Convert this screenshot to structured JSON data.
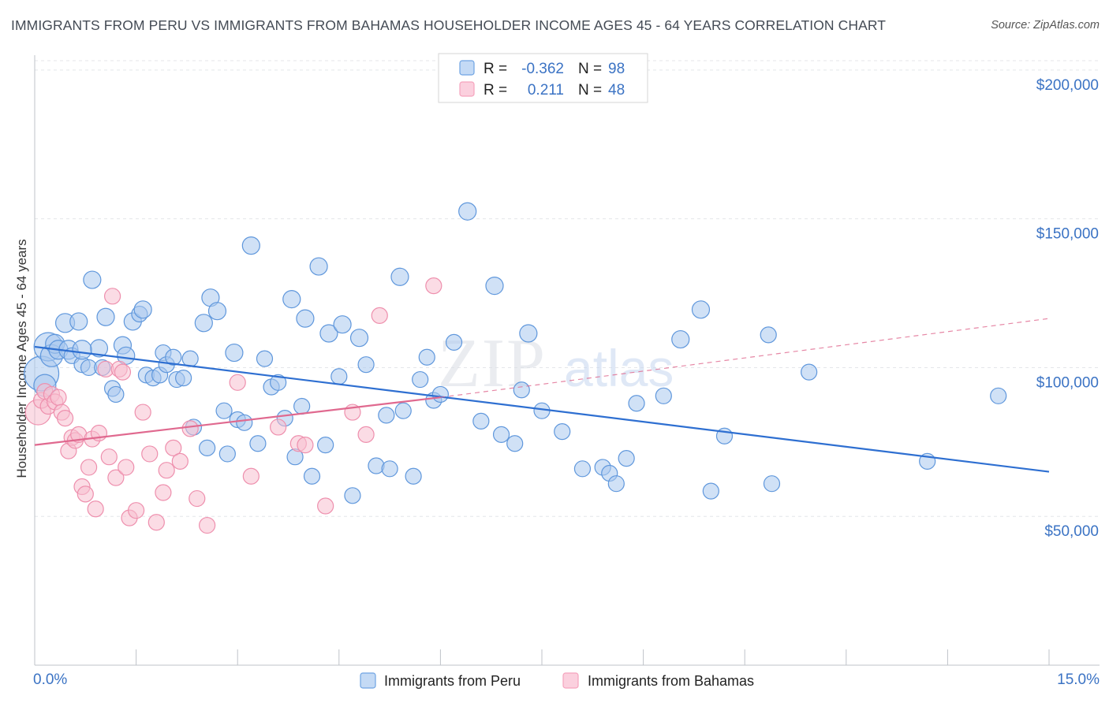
{
  "title": "IMMIGRANTS FROM PERU VS IMMIGRANTS FROM BAHAMAS HOUSEHOLDER INCOME AGES 45 - 64 YEARS CORRELATION CHART",
  "source": "Source: ZipAtlas.com",
  "watermark": {
    "zip": "ZIP",
    "atlas": "atlas"
  },
  "colors": {
    "peru": "#6fa4e3",
    "peru_line": "#2e6fd1",
    "bahamas": "#f5a3bd",
    "bahamas_line": "#e0698f",
    "tick": "#3b73c4"
  },
  "legend": {
    "r_label": "R =",
    "n_label": "N =",
    "rows": [
      {
        "series": "peru",
        "r": "-0.362",
        "n": "98"
      },
      {
        "series": "bahamas",
        "r": "0.211",
        "n": "48"
      }
    ]
  },
  "chart_data": {
    "type": "scatter",
    "xlabel": "",
    "ylabel": "Householder Income Ages 45 - 64 years",
    "xlim": [
      0,
      15
    ],
    "ylim": [
      0,
      205000
    ],
    "x_tick_labels": {
      "left": "0.0%",
      "right": "15.0%"
    },
    "y_ticks": [
      {
        "value": 50000,
        "label": "$50,000"
      },
      {
        "value": 100000,
        "label": "$100,000"
      },
      {
        "value": 150000,
        "label": "$150,000"
      },
      {
        "value": 200000,
        "label": "$200,000"
      }
    ],
    "grid": true,
    "legend_position": "top-center",
    "series": [
      {
        "name": "Immigrants from Peru",
        "trend": {
          "x": [
            0,
            15
          ],
          "y": [
            107000,
            65000
          ],
          "dashed_to": null
        },
        "points": [
          [
            0.1,
            98000,
            22
          ],
          [
            0.15,
            94000,
            14
          ],
          [
            0.2,
            107000,
            18
          ],
          [
            0.25,
            104000,
            14
          ],
          [
            0.3,
            108000,
            12
          ],
          [
            0.35,
            106000,
            12
          ],
          [
            0.45,
            115000,
            12
          ],
          [
            0.5,
            106000,
            12
          ],
          [
            0.55,
            104000,
            10
          ],
          [
            0.65,
            115500,
            11
          ],
          [
            0.7,
            101000,
            10
          ],
          [
            0.8,
            100000,
            10
          ],
          [
            0.85,
            129500,
            11
          ],
          [
            0.95,
            106500,
            11
          ],
          [
            1.05,
            117000,
            11
          ],
          [
            1.15,
            93000,
            10
          ],
          [
            1.2,
            91000,
            10
          ],
          [
            1.3,
            107500,
            11
          ],
          [
            1.35,
            104000,
            11
          ],
          [
            1.45,
            115500,
            11
          ],
          [
            1.55,
            118000,
            10
          ],
          [
            1.6,
            119500,
            11
          ],
          [
            1.65,
            97500,
            10
          ],
          [
            1.75,
            96500,
            10
          ],
          [
            1.85,
            97500,
            10
          ],
          [
            1.9,
            105000,
            10
          ],
          [
            1.95,
            101000,
            10
          ],
          [
            2.05,
            103500,
            10
          ],
          [
            2.1,
            96000,
            10
          ],
          [
            2.2,
            96500,
            10
          ],
          [
            2.3,
            103000,
            10
          ],
          [
            2.35,
            80000,
            10
          ],
          [
            2.5,
            115000,
            11
          ],
          [
            2.55,
            73000,
            10
          ],
          [
            2.6,
            123500,
            11
          ],
          [
            2.7,
            119000,
            11
          ],
          [
            2.8,
            85500,
            10
          ],
          [
            2.85,
            71000,
            10
          ],
          [
            2.95,
            105000,
            11
          ],
          [
            3.0,
            82500,
            10
          ],
          [
            3.1,
            81500,
            10
          ],
          [
            3.2,
            141000,
            11
          ],
          [
            3.3,
            74500,
            10
          ],
          [
            3.4,
            103000,
            10
          ],
          [
            3.5,
            93500,
            10
          ],
          [
            3.6,
            95000,
            10
          ],
          [
            3.7,
            83000,
            10
          ],
          [
            3.8,
            123000,
            11
          ],
          [
            3.85,
            70000,
            10
          ],
          [
            3.95,
            87000,
            10
          ],
          [
            4.0,
            116500,
            11
          ],
          [
            4.1,
            63500,
            10
          ],
          [
            4.2,
            134000,
            11
          ],
          [
            4.3,
            74000,
            10
          ],
          [
            4.35,
            111500,
            11
          ],
          [
            4.5,
            97000,
            10
          ],
          [
            4.55,
            114500,
            11
          ],
          [
            4.7,
            57000,
            10
          ],
          [
            4.8,
            110000,
            11
          ],
          [
            4.9,
            101000,
            10
          ],
          [
            5.05,
            67000,
            10
          ],
          [
            5.2,
            84000,
            10
          ],
          [
            5.25,
            66000,
            10
          ],
          [
            5.4,
            130500,
            11
          ],
          [
            5.45,
            85500,
            10
          ],
          [
            5.6,
            63500,
            10
          ],
          [
            5.7,
            96000,
            10
          ],
          [
            5.8,
            103500,
            10
          ],
          [
            5.9,
            89000,
            10
          ],
          [
            6.0,
            91000,
            10
          ],
          [
            6.2,
            108500,
            10
          ],
          [
            6.4,
            152500,
            11
          ],
          [
            6.6,
            82000,
            10
          ],
          [
            6.8,
            127500,
            11
          ],
          [
            6.9,
            77500,
            10
          ],
          [
            7.1,
            74500,
            10
          ],
          [
            7.2,
            92500,
            10
          ],
          [
            7.3,
            111500,
            11
          ],
          [
            7.5,
            85500,
            10
          ],
          [
            7.8,
            78500,
            10
          ],
          [
            8.1,
            66000,
            10
          ],
          [
            8.4,
            66500,
            10
          ],
          [
            8.5,
            64500,
            10
          ],
          [
            8.6,
            61000,
            10
          ],
          [
            8.75,
            69500,
            10
          ],
          [
            8.9,
            88000,
            10
          ],
          [
            9.3,
            90500,
            10
          ],
          [
            9.55,
            109500,
            11
          ],
          [
            9.85,
            119500,
            11
          ],
          [
            10.0,
            58500,
            10
          ],
          [
            10.2,
            77000,
            10
          ],
          [
            10.85,
            111000,
            10
          ],
          [
            10.9,
            61000,
            10
          ],
          [
            11.45,
            98500,
            10
          ],
          [
            13.2,
            68500,
            10
          ],
          [
            14.25,
            90500,
            10
          ],
          [
            0.7,
            106000,
            12
          ],
          [
            1.0,
            100000,
            10
          ]
        ]
      },
      {
        "name": "Immigrants from Bahamas",
        "trend": {
          "x": [
            0,
            6
          ],
          "y": [
            74000,
            90000
          ],
          "dashed_to": [
            15,
            116500
          ]
        },
        "points": [
          [
            0.05,
            85000,
            16
          ],
          [
            0.1,
            89000,
            10
          ],
          [
            0.15,
            92000,
            10
          ],
          [
            0.2,
            87000,
            10
          ],
          [
            0.25,
            91000,
            10
          ],
          [
            0.3,
            88500,
            10
          ],
          [
            0.35,
            90000,
            10
          ],
          [
            0.4,
            85000,
            10
          ],
          [
            0.45,
            83000,
            10
          ],
          [
            0.5,
            72000,
            10
          ],
          [
            0.55,
            76500,
            10
          ],
          [
            0.6,
            75500,
            10
          ],
          [
            0.65,
            77500,
            10
          ],
          [
            0.7,
            60000,
            10
          ],
          [
            0.75,
            57500,
            10
          ],
          [
            0.8,
            66500,
            10
          ],
          [
            0.85,
            76000,
            10
          ],
          [
            0.9,
            52500,
            10
          ],
          [
            0.95,
            78000,
            10
          ],
          [
            1.05,
            99500,
            10
          ],
          [
            1.1,
            70000,
            10
          ],
          [
            1.15,
            124000,
            10
          ],
          [
            1.2,
            63000,
            10
          ],
          [
            1.25,
            99500,
            10
          ],
          [
            1.3,
            98500,
            10
          ],
          [
            1.35,
            66500,
            10
          ],
          [
            1.4,
            49500,
            10
          ],
          [
            1.5,
            52000,
            10
          ],
          [
            1.6,
            85000,
            10
          ],
          [
            1.7,
            71000,
            10
          ],
          [
            1.8,
            48000,
            10
          ],
          [
            1.9,
            58000,
            10
          ],
          [
            1.95,
            65500,
            10
          ],
          [
            2.05,
            73000,
            10
          ],
          [
            2.15,
            68500,
            10
          ],
          [
            2.3,
            79500,
            10
          ],
          [
            2.4,
            56000,
            10
          ],
          [
            2.55,
            47000,
            10
          ],
          [
            3.0,
            95000,
            10
          ],
          [
            3.2,
            63500,
            10
          ],
          [
            3.6,
            80000,
            10
          ],
          [
            3.9,
            74500,
            10
          ],
          [
            4.0,
            74000,
            10
          ],
          [
            4.3,
            53500,
            10
          ],
          [
            4.7,
            85000,
            10
          ],
          [
            4.9,
            77500,
            10
          ],
          [
            5.1,
            117500,
            10
          ],
          [
            5.9,
            127500,
            10
          ]
        ]
      }
    ]
  },
  "bottom_legend": [
    {
      "series": "peru",
      "label": "Immigrants from Peru"
    },
    {
      "series": "bahamas",
      "label": "Immigrants from Bahamas"
    }
  ]
}
